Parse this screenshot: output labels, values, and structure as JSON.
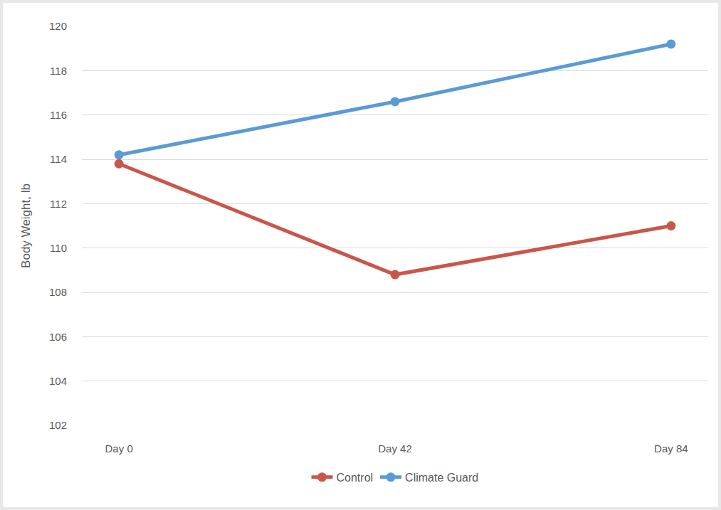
{
  "chart_data": {
    "type": "line",
    "y_label": "Body Weight, lb",
    "categories": [
      "Day 0",
      "Day 42",
      "Day 84"
    ],
    "series": [
      {
        "name": "Control",
        "color": "#c9564a",
        "values": [
          113.8,
          108.8,
          111.0
        ]
      },
      {
        "name": "Climate Guard",
        "color": "#5b9bd5",
        "values": [
          114.2,
          116.6,
          119.2
        ]
      }
    ],
    "ylim": [
      102,
      120
    ],
    "yticks": [
      102,
      104,
      106,
      108,
      110,
      112,
      114,
      116,
      118,
      120
    ],
    "grid": true,
    "legend": "bottom",
    "marker": "circle",
    "line_style": "solid"
  }
}
